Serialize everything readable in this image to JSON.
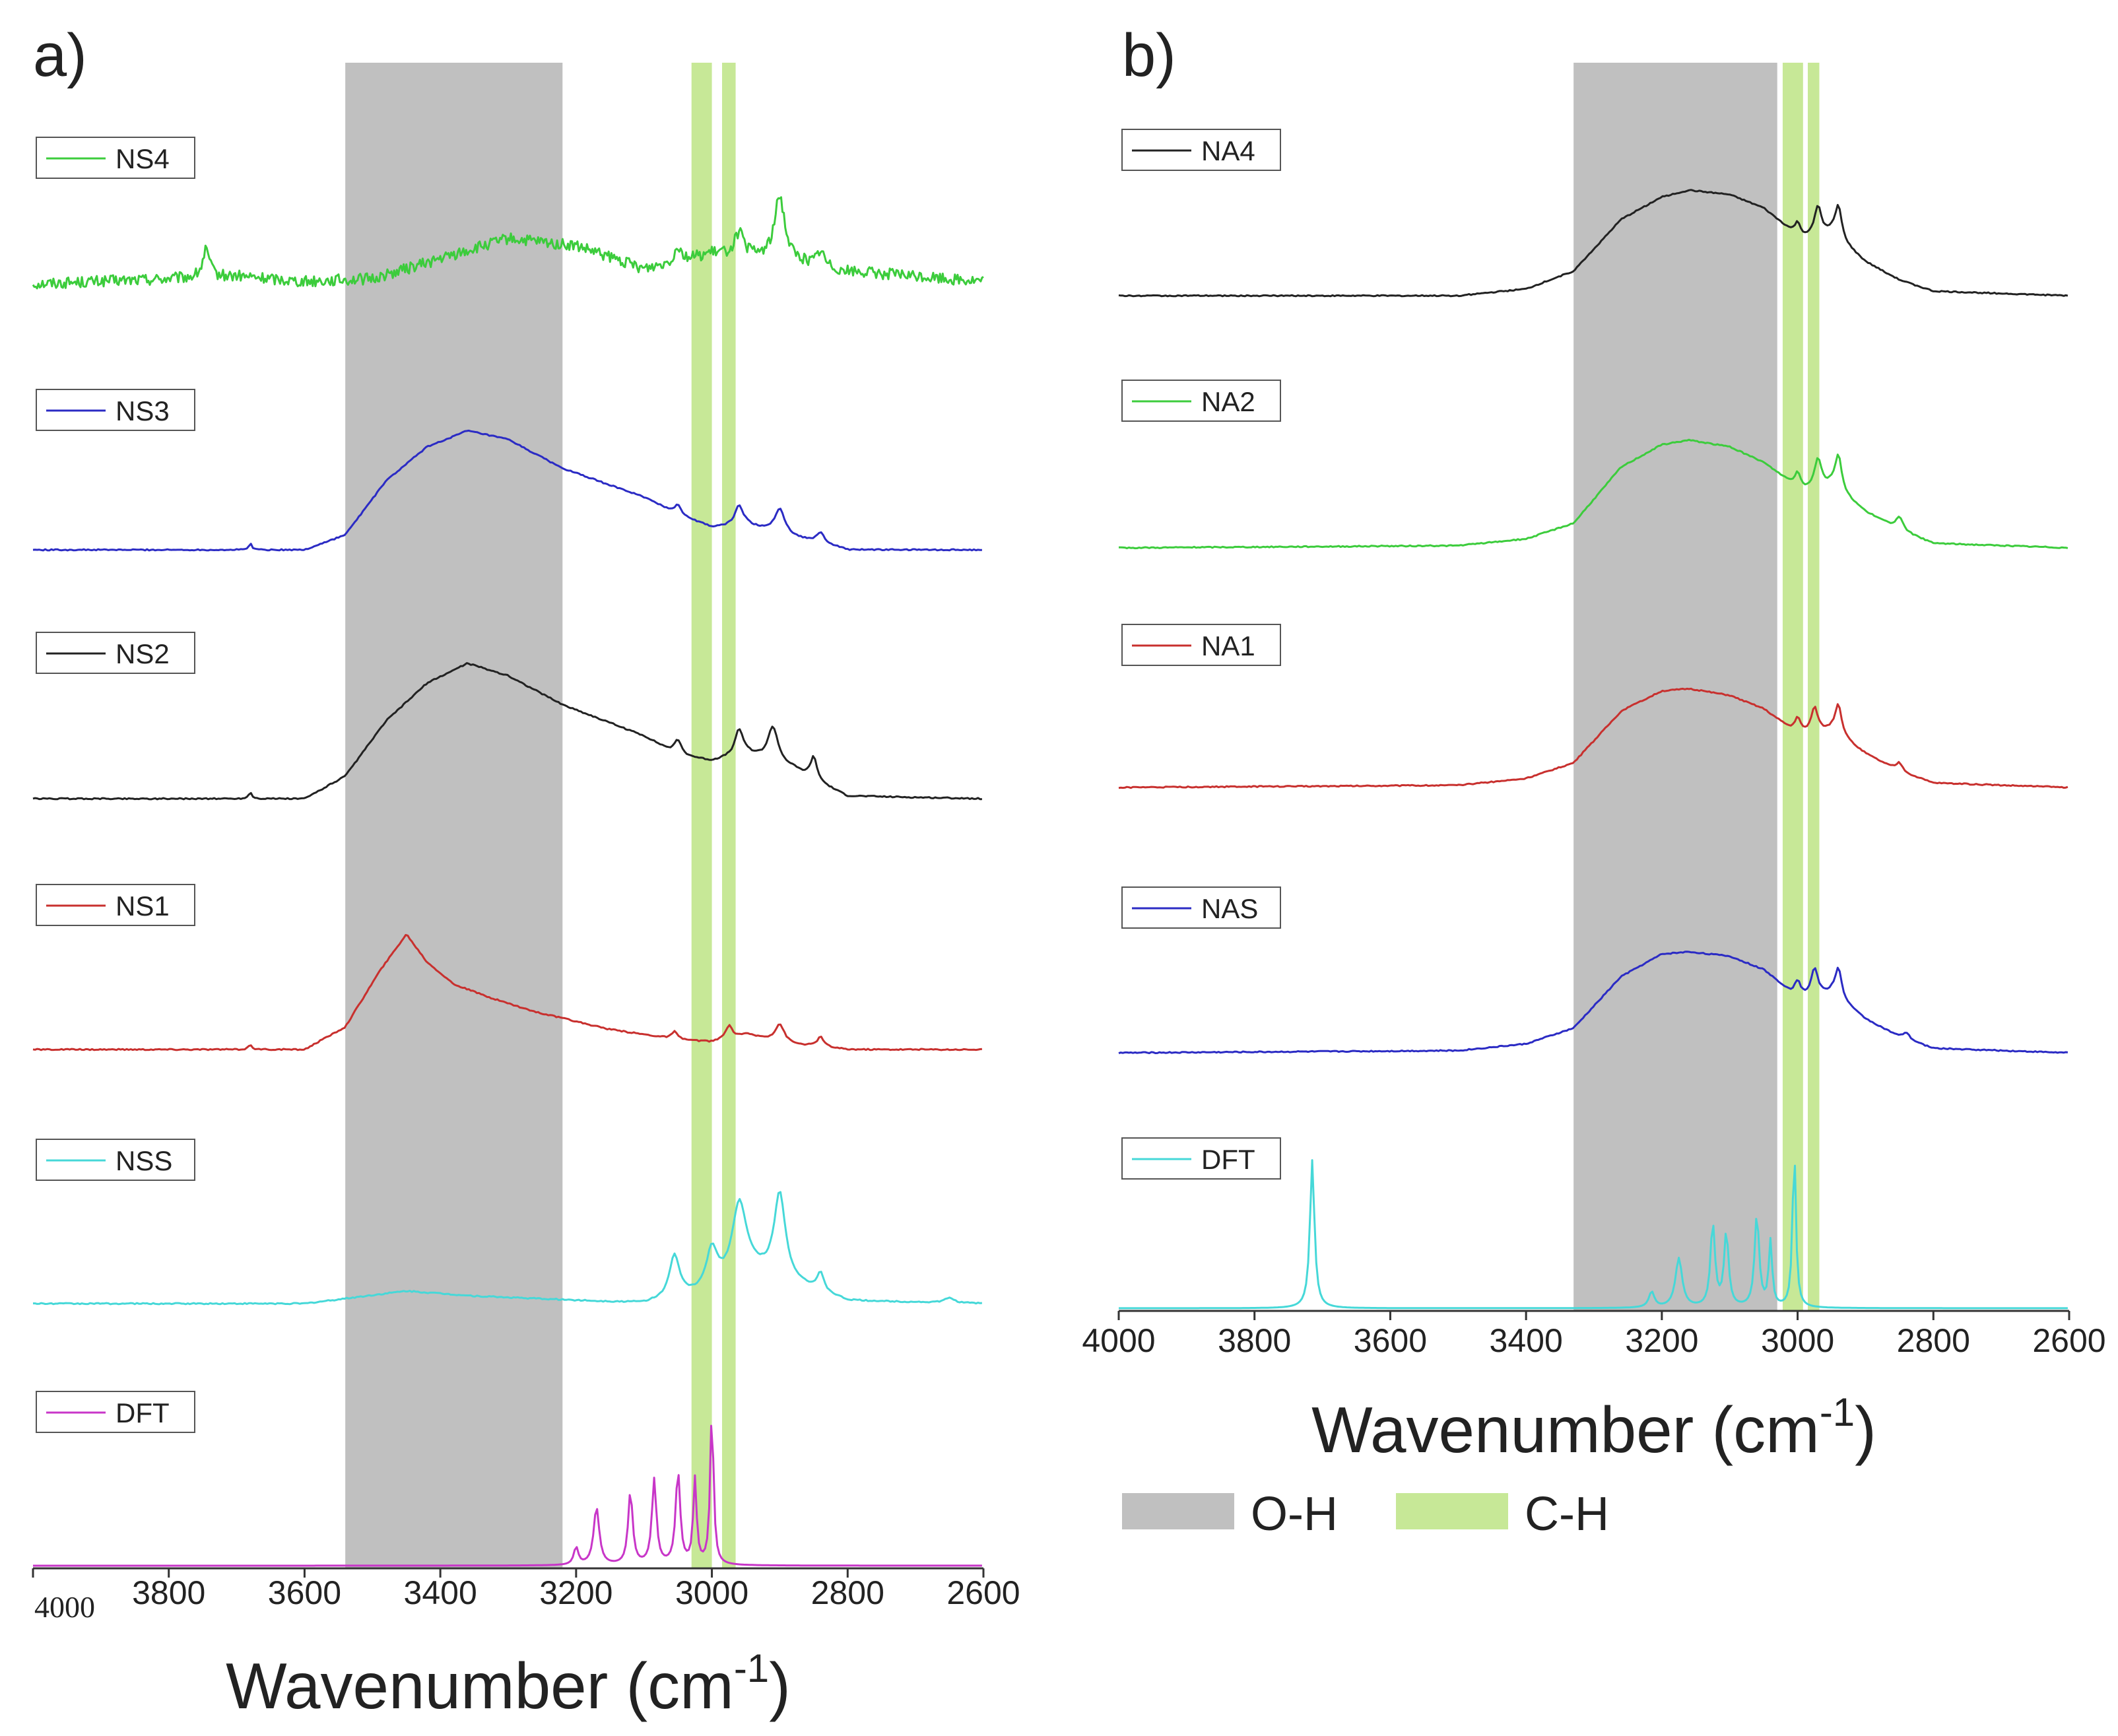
{
  "chart_data": [
    {
      "panel": "a)",
      "type": "line",
      "xlabel_prefix": "Wavenumber (cm",
      "xlabel_sup": "-1",
      "xlabel_suffix": ")",
      "xlim": [
        4000,
        2600
      ],
      "x_ticks": [
        "4000",
        "3800",
        "3600",
        "3400",
        "3200",
        "3000",
        "2800",
        "2600"
      ],
      "bands": [
        {
          "label": "O-H",
          "from": 3540,
          "to": 3220,
          "color": "#c0c0c0"
        },
        {
          "label": "C-H",
          "from": 3030,
          "to": 3000,
          "color": "#c7e897"
        },
        {
          "label": "C-H",
          "from": 2985,
          "to": 2965,
          "color": "#c7e897"
        }
      ],
      "series": [
        {
          "name": "NS4",
          "color": "#3ccc3c",
          "noise": 9,
          "baseline": [
            [
              4000,
              0
            ],
            [
              3700,
              6
            ],
            [
              3600,
              2
            ],
            [
              3500,
              4
            ],
            [
              3300,
              36
            ],
            [
              3200,
              30
            ],
            [
              3100,
              12
            ],
            [
              3000,
              24
            ],
            [
              2900,
              20
            ],
            [
              2800,
              10
            ],
            [
              2600,
              2
            ]
          ],
          "peaks": [
            [
              3745,
              22,
              6
            ],
            [
              3050,
              12,
              6
            ],
            [
              2960,
              18,
              8
            ],
            [
              2900,
              50,
              9
            ],
            [
              2840,
              12,
              6
            ]
          ]
        },
        {
          "name": "NS3",
          "color": "#2b2bc4",
          "noise": 1,
          "baseline": [
            [
              4000,
              0
            ],
            [
              3600,
              0
            ],
            [
              3540,
              12
            ],
            [
              3480,
              55
            ],
            [
              3420,
              82
            ],
            [
              3360,
              95
            ],
            [
              3300,
              88
            ],
            [
              3220,
              65
            ],
            [
              3100,
              42
            ],
            [
              3050,
              28
            ],
            [
              3000,
              18
            ],
            [
              2950,
              20
            ],
            [
              2880,
              10
            ],
            [
              2840,
              6
            ],
            [
              2800,
              0
            ],
            [
              2600,
              0
            ]
          ],
          "peaks": [
            [
              3680,
              5,
              3
            ],
            [
              3050,
              8,
              6
            ],
            [
              2960,
              16,
              7
            ],
            [
              2900,
              20,
              9
            ],
            [
              2840,
              8,
              6
            ]
          ]
        },
        {
          "name": "NS2",
          "color": "#222222",
          "noise": 1,
          "baseline": [
            [
              4000,
              0
            ],
            [
              3600,
              0
            ],
            [
              3540,
              18
            ],
            [
              3480,
              62
            ],
            [
              3420,
              92
            ],
            [
              3360,
              108
            ],
            [
              3300,
              98
            ],
            [
              3220,
              75
            ],
            [
              3100,
              50
            ],
            [
              3050,
              35
            ],
            [
              3000,
              30
            ],
            [
              2950,
              36
            ],
            [
              2880,
              24
            ],
            [
              2840,
              12
            ],
            [
              2800,
              2
            ],
            [
              2600,
              0
            ]
          ],
          "peaks": [
            [
              3680,
              5,
              3
            ],
            [
              3050,
              12,
              6
            ],
            [
              2960,
              20,
              7
            ],
            [
              2910,
              28,
              9
            ],
            [
              2850,
              18,
              6
            ]
          ]
        },
        {
          "name": "NS1",
          "color": "#c8302e",
          "noise": 1,
          "baseline": [
            [
              4000,
              0
            ],
            [
              3600,
              0
            ],
            [
              3540,
              18
            ],
            [
              3490,
              62
            ],
            [
              3450,
              92
            ],
            [
              3420,
              70
            ],
            [
              3380,
              52
            ],
            [
              3330,
              42
            ],
            [
              3260,
              30
            ],
            [
              3150,
              16
            ],
            [
              3050,
              8
            ],
            [
              3000,
              6
            ],
            [
              2950,
              12
            ],
            [
              2880,
              4
            ],
            [
              2800,
              0
            ],
            [
              2600,
              0
            ]
          ],
          "peaks": [
            [
              3680,
              4,
              3
            ],
            [
              3055,
              6,
              5
            ],
            [
              2975,
              10,
              6
            ],
            [
              2900,
              14,
              8
            ],
            [
              2840,
              8,
              6
            ]
          ]
        },
        {
          "name": "NSS",
          "color": "#46d8d8",
          "noise": 1,
          "baseline": [
            [
              4000,
              0
            ],
            [
              3600,
              0
            ],
            [
              3450,
              10
            ],
            [
              3350,
              6
            ],
            [
              3100,
              0
            ],
            [
              3000,
              8
            ],
            [
              2950,
              28
            ],
            [
              2880,
              16
            ],
            [
              2800,
              2
            ],
            [
              2600,
              0
            ]
          ],
          "peaks": [
            [
              3055,
              34,
              9
            ],
            [
              3000,
              34,
              10
            ],
            [
              2960,
              55,
              12
            ],
            [
              2900,
              68,
              10
            ],
            [
              2840,
              14,
              6
            ],
            [
              2650,
              4,
              8
            ]
          ]
        },
        {
          "name": "DFT",
          "color": "#c836c8",
          "noise": 0,
          "baseline": [
            [
              4000,
              0
            ],
            [
              2600,
              0
            ]
          ],
          "peaks": [
            [
              3200,
              14,
              4
            ],
            [
              3170,
              46,
              5
            ],
            [
              3120,
              58,
              4
            ],
            [
              3085,
              68,
              4
            ],
            [
              3050,
              74,
              4
            ],
            [
              3025,
              68,
              3
            ],
            [
              3000,
              122,
              3
            ]
          ]
        }
      ],
      "legend_order": [
        "NS4",
        "NS3",
        "NS2",
        "NS1",
        "NSS",
        "DFT"
      ]
    },
    {
      "panel": "b)",
      "type": "line",
      "xlabel_prefix": "Wavenumber (cm",
      "xlabel_sup": "-1",
      "xlabel_suffix": ")",
      "xlim": [
        4000,
        2600
      ],
      "x_ticks": [
        "4000",
        "3800",
        "3600",
        "3400",
        "3200",
        "3000",
        "2800",
        "2600"
      ],
      "bands": [
        {
          "label": "O-H",
          "from": 3330,
          "to": 3030,
          "color": "#c0c0c0"
        },
        {
          "label": "C-H",
          "from": 3022,
          "to": 2992,
          "color": "#c7e897"
        },
        {
          "label": "C-H",
          "from": 2985,
          "to": 2968,
          "color": "#c7e897"
        }
      ],
      "series": [
        {
          "name": "NA4",
          "color": "#222222",
          "noise": 1,
          "baseline": [
            [
              4000,
              0
            ],
            [
              3500,
              0
            ],
            [
              3400,
              6
            ],
            [
              3330,
              22
            ],
            [
              3260,
              68
            ],
            [
              3200,
              88
            ],
            [
              3160,
              94
            ],
            [
              3100,
              90
            ],
            [
              3050,
              78
            ],
            [
              3010,
              58
            ],
            [
              2990,
              52
            ],
            [
              2950,
              55
            ],
            [
              2900,
              30
            ],
            [
              2850,
              14
            ],
            [
              2800,
              4
            ],
            [
              2700,
              2
            ],
            [
              2600,
              0
            ]
          ],
          "peaks": [
            [
              3000,
              10,
              5
            ],
            [
              2970,
              26,
              6
            ],
            [
              2940,
              30,
              6
            ]
          ]
        },
        {
          "name": "NA2",
          "color": "#3ccc3c",
          "noise": 1,
          "baseline": [
            [
              4000,
              0
            ],
            [
              3500,
              2
            ],
            [
              3400,
              8
            ],
            [
              3330,
              22
            ],
            [
              3260,
              72
            ],
            [
              3200,
              92
            ],
            [
              3160,
              96
            ],
            [
              3100,
              90
            ],
            [
              3050,
              76
            ],
            [
              3010,
              58
            ],
            [
              2990,
              52
            ],
            [
              2950,
              55
            ],
            [
              2900,
              32
            ],
            [
              2850,
              16
            ],
            [
              2800,
              4
            ],
            [
              2700,
              2
            ],
            [
              2600,
              0
            ]
          ],
          "peaks": [
            [
              3000,
              12,
              5
            ],
            [
              2970,
              26,
              6
            ],
            [
              2940,
              32,
              6
            ],
            [
              2850,
              12,
              6
            ]
          ]
        },
        {
          "name": "NA1",
          "color": "#c8302e",
          "noise": 1,
          "baseline": [
            [
              4000,
              0
            ],
            [
              3500,
              2
            ],
            [
              3400,
              8
            ],
            [
              3330,
              22
            ],
            [
              3260,
              68
            ],
            [
              3200,
              86
            ],
            [
              3160,
              88
            ],
            [
              3100,
              82
            ],
            [
              3050,
              70
            ],
            [
              3010,
              52
            ],
            [
              2990,
              48
            ],
            [
              2950,
              50
            ],
            [
              2900,
              30
            ],
            [
              2850,
              14
            ],
            [
              2800,
              4
            ],
            [
              2700,
              2
            ],
            [
              2600,
              0
            ]
          ],
          "peaks": [
            [
              3000,
              12,
              5
            ],
            [
              2975,
              22,
              6
            ],
            [
              2940,
              28,
              6
            ],
            [
              2850,
              8,
              6
            ]
          ]
        },
        {
          "name": "NAS",
          "color": "#2b2bc4",
          "noise": 1,
          "baseline": [
            [
              4000,
              0
            ],
            [
              3500,
              2
            ],
            [
              3400,
              8
            ],
            [
              3330,
              22
            ],
            [
              3260,
              68
            ],
            [
              3200,
              88
            ],
            [
              3160,
              90
            ],
            [
              3100,
              86
            ],
            [
              3050,
              74
            ],
            [
              3010,
              54
            ],
            [
              2990,
              50
            ],
            [
              2950,
              52
            ],
            [
              2900,
              30
            ],
            [
              2850,
              14
            ],
            [
              2800,
              4
            ],
            [
              2700,
              2
            ],
            [
              2600,
              0
            ]
          ],
          "peaks": [
            [
              3000,
              12,
              5
            ],
            [
              2975,
              24,
              6
            ],
            [
              2940,
              28,
              6
            ],
            [
              2840,
              6,
              6
            ]
          ]
        },
        {
          "name": "DFT",
          "color": "#46d8d8",
          "noise": 0,
          "baseline": [
            [
              4000,
              0
            ],
            [
              2600,
              0
            ]
          ],
          "peaks": [
            [
              3715,
              132,
              4
            ],
            [
              3215,
              14,
              5
            ],
            [
              3175,
              44,
              6
            ],
            [
              3125,
              74,
              4
            ],
            [
              3105,
              66,
              4
            ],
            [
              3060,
              82,
              4
            ],
            [
              3040,
              58,
              3
            ],
            [
              3005,
              140,
              3
            ]
          ]
        }
      ],
      "legend_order": [
        "NA4",
        "NA2",
        "NA1",
        "NAS",
        "DFT"
      ],
      "band_legend": [
        "O-H",
        "C-H"
      ]
    }
  ]
}
